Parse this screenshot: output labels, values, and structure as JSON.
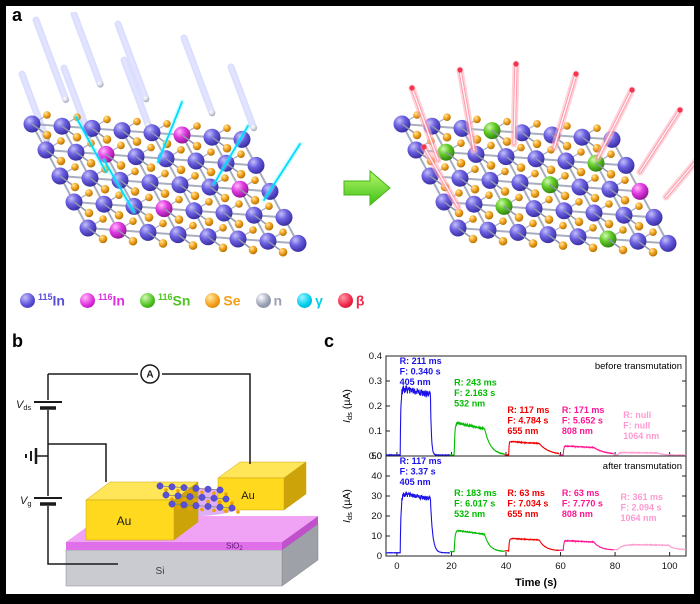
{
  "figure": {
    "panel_a_label": "a",
    "panel_b_label": "b",
    "panel_c_label": "c"
  },
  "legend": {
    "items": [
      {
        "name": "In-115",
        "sup": "115",
        "text": "In",
        "color": "#5a4fd8",
        "light": "#c3bcf8",
        "dark": "#352a9e"
      },
      {
        "name": "In-116",
        "sup": "116",
        "text": "In",
        "color": "#e02ee0",
        "light": "#ffb8f6",
        "dark": "#8f0f92"
      },
      {
        "name": "Sn-116",
        "sup": "116",
        "text": "Sn",
        "color": "#4fc422",
        "light": "#d2f8b0",
        "dark": "#2c7e0c"
      },
      {
        "name": "Se",
        "sup": "",
        "text": "Se",
        "color": "#f59f18",
        "light": "#ffe9a8",
        "dark": "#b06c00"
      },
      {
        "name": "neutron",
        "sup": "",
        "text": "n",
        "color": "#9aa0b4",
        "light": "#ffffff",
        "dark": "#7d8398"
      },
      {
        "name": "gamma",
        "sup": "",
        "text": "γ",
        "color": "#00cfee",
        "light": "#9ff2ff",
        "dark": "#0098b8"
      },
      {
        "name": "beta",
        "sup": "",
        "text": "β",
        "color": "#f0284a",
        "light": "#ff9aa6",
        "dark": "#b00c2c"
      }
    ]
  },
  "device": {
    "ammeter": "A",
    "vds": {
      "main": "V",
      "sub": "ds"
    },
    "vg": {
      "main": "V",
      "sub": "g"
    },
    "electrode_left": "Au",
    "electrode_right": "Au",
    "oxide": {
      "main": "SiO",
      "sub": "2"
    },
    "substrate": "Si"
  },
  "chart_data": [
    {
      "type": "line",
      "title": "before transmutation",
      "ylabel_main": "I",
      "ylabel_sub": "ds",
      "ylabel_unit": " (µA)",
      "xlabel": "",
      "ylim": [
        0,
        0.4
      ],
      "yticks": [
        "0.0",
        "0.1",
        "0.2",
        "0.3",
        "0.4"
      ],
      "xlim": [
        -4,
        106
      ],
      "xticks": [
        0,
        20,
        40,
        60,
        80,
        100
      ],
      "series": [
        {
          "name": "405 nm",
          "color": "#1c12e8",
          "window": [
            -4,
            19.5
          ],
          "t_on": 1.2,
          "t_off": 12.3,
          "base": 0.004,
          "peak": 0.272,
          "end": 0.245,
          "rise_tau": 0.22,
          "fall_tau": 0.34,
          "noise": 0.024,
          "base_noise": 0.0015,
          "annotation": {
            "x": 1,
            "y": 0.4,
            "lines": [
              "R: 211 ms",
              "F: 0.340 s",
              "405 nm"
            ]
          }
        },
        {
          "name": "532 nm",
          "color": "#00bb00",
          "window": [
            19.5,
            39.5
          ],
          "t_on": 21,
          "t_off": 32.2,
          "base": 0.004,
          "peak": 0.135,
          "end": 0.108,
          "rise_tau": 0.25,
          "fall_tau": 2.16,
          "noise": 0.006,
          "base_noise": 0.0015,
          "annotation": {
            "x": 21,
            "y": 0.315,
            "lines": [
              "R: 243 ms",
              "F: 2.163 s",
              "532 nm"
            ]
          }
        },
        {
          "name": "655 nm",
          "color": "#f00000",
          "window": [
            39.5,
            59.5
          ],
          "t_on": 41,
          "t_off": 52.2,
          "base": 0.004,
          "peak": 0.058,
          "end": 0.05,
          "rise_tau": 0.12,
          "fall_tau": 3.5,
          "noise": 0.003,
          "base_noise": 0.0015,
          "annotation": {
            "x": 40.5,
            "y": 0.205,
            "lines": [
              "R: 117 ms",
              "F: 4.784 s",
              "655 nm"
            ]
          }
        },
        {
          "name": "808 nm",
          "color": "#ff1493",
          "window": [
            59.5,
            79.5
          ],
          "t_on": 61,
          "t_off": 72.2,
          "base": 0.004,
          "peak": 0.04,
          "end": 0.034,
          "rise_tau": 0.17,
          "fall_tau": 4.2,
          "noise": 0.0025,
          "base_noise": 0.0015,
          "annotation": {
            "x": 60.5,
            "y": 0.205,
            "lines": [
              "R: 171 ms",
              "F: 5.652 s",
              "808 nm"
            ]
          }
        },
        {
          "name": "1064 nm",
          "color": "#ff9ad0",
          "window": [
            79.5,
            106
          ],
          "t_on": 81,
          "t_off": 95.5,
          "base": 0.004,
          "peak": 0.014,
          "end": 0.012,
          "rise_tau": 0.4,
          "fall_tau": 2.0,
          "noise": 0.002,
          "base_noise": 0.0015,
          "annotation": {
            "x": 83,
            "y": 0.185,
            "lines": [
              "R: null",
              "F: null",
              "1064 nm"
            ]
          }
        }
      ]
    },
    {
      "type": "line",
      "title": "after transmutation",
      "ylabel_main": "I",
      "ylabel_sub": "ds",
      "ylabel_unit": " (µA)",
      "xlabel": "Time (s)",
      "ylim": [
        0,
        50
      ],
      "yticks": [
        "0",
        "10",
        "20",
        "30",
        "40",
        "50"
      ],
      "xlim": [
        -4,
        106
      ],
      "xticks": [
        0,
        20,
        40,
        60,
        80,
        100
      ],
      "series": [
        {
          "name": "405 nm",
          "color": "#1c12e8",
          "window": [
            -4,
            19.5
          ],
          "t_on": 1.2,
          "t_off": 12.3,
          "base": 1.6,
          "peak": 31.5,
          "end": 28.5,
          "rise_tau": 0.3,
          "fall_tau": 0.8,
          "noise": 2.0,
          "base_noise": 0.12,
          "annotation": {
            "x": 1,
            "y": 50,
            "lines": [
              "R: 117 ms",
              "F: 3.37 s",
              "405 nm"
            ]
          }
        },
        {
          "name": "532 nm",
          "color": "#00bb00",
          "window": [
            19.5,
            39.5
          ],
          "t_on": 21,
          "t_off": 32.2,
          "base": 2.2,
          "peak": 13.0,
          "end": 10.8,
          "rise_tau": 0.3,
          "fall_tau": 1.8,
          "noise": 0.35,
          "base_noise": 0.12,
          "annotation": {
            "x": 21,
            "y": 34,
            "lines": [
              "R: 183 ms",
              "F: 6.017 s",
              "532 nm"
            ]
          }
        },
        {
          "name": "655 nm",
          "color": "#f00000",
          "window": [
            39.5,
            59.5
          ],
          "t_on": 41,
          "t_off": 52.2,
          "base": 2.6,
          "peak": 8.8,
          "end": 8.0,
          "rise_tau": 0.2,
          "fall_tau": 2.2,
          "noise": 0.3,
          "base_noise": 0.12,
          "annotation": {
            "x": 40.5,
            "y": 34,
            "lines": [
              "R: 63 ms",
              "F: 7.034 s",
              "655 nm"
            ]
          }
        },
        {
          "name": "808 nm",
          "color": "#ff1493",
          "window": [
            59.5,
            79.5
          ],
          "t_on": 61,
          "t_off": 72.2,
          "base": 2.9,
          "peak": 7.7,
          "end": 7.0,
          "rise_tau": 0.2,
          "fall_tau": 2.4,
          "noise": 0.3,
          "base_noise": 0.12,
          "annotation": {
            "x": 60.5,
            "y": 34,
            "lines": [
              "R: 63 ms",
              "F: 7.770 s",
              "808 nm"
            ]
          }
        },
        {
          "name": "1064 nm",
          "color": "#ff9ad0",
          "window": [
            79.5,
            106
          ],
          "t_on": 81,
          "t_off": 99.5,
          "base": 3.2,
          "peak": 5.8,
          "end": 5.4,
          "rise_tau": 1.6,
          "fall_tau": 2.0,
          "noise": 0.25,
          "base_noise": 0.12,
          "annotation": {
            "x": 82,
            "y": 32,
            "lines": [
              "R: 361 ms",
              "F: 2.094 s",
              "1064 nm"
            ]
          }
        }
      ]
    }
  ]
}
